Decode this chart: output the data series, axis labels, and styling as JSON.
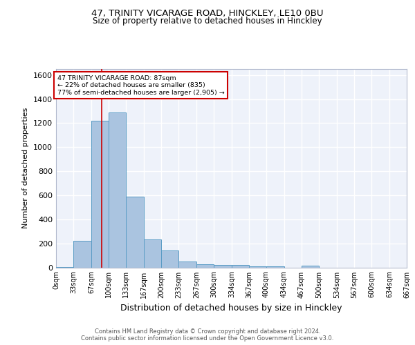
{
  "title_line1": "47, TRINITY VICARAGE ROAD, HINCKLEY, LE10 0BU",
  "title_line2": "Size of property relative to detached houses in Hinckley",
  "xlabel": "Distribution of detached houses by size in Hinckley",
  "ylabel": "Number of detached properties",
  "footer_line1": "Contains HM Land Registry data © Crown copyright and database right 2024.",
  "footer_line2": "Contains public sector information licensed under the Open Government Licence v3.0.",
  "bin_edges": [
    0,
    33,
    67,
    100,
    133,
    167,
    200,
    233,
    267,
    300,
    334,
    367,
    400,
    434,
    467,
    500,
    534,
    567,
    600,
    634,
    667
  ],
  "bin_labels": [
    "0sqm",
    "33sqm",
    "67sqm",
    "100sqm",
    "133sqm",
    "167sqm",
    "200sqm",
    "233sqm",
    "267sqm",
    "300sqm",
    "334sqm",
    "367sqm",
    "400sqm",
    "434sqm",
    "467sqm",
    "500sqm",
    "534sqm",
    "567sqm",
    "600sqm",
    "634sqm",
    "667sqm"
  ],
  "counts": [
    5,
    220,
    1220,
    1290,
    590,
    235,
    140,
    50,
    28,
    22,
    22,
    8,
    8,
    0,
    15,
    0,
    0,
    0,
    0,
    0
  ],
  "bar_color": "#aac4e0",
  "bar_edge_color": "#5a9cc5",
  "ylim": [
    0,
    1650
  ],
  "yticks": [
    0,
    200,
    400,
    600,
    800,
    1000,
    1200,
    1400,
    1600
  ],
  "property_line_x": 87,
  "property_line_color": "#cc0000",
  "annotation_text_line1": "47 TRINITY VICARAGE ROAD: 87sqm",
  "annotation_text_line2": "← 22% of detached houses are smaller (835)",
  "annotation_text_line3": "77% of semi-detached houses are larger (2,905) →",
  "annotation_box_color": "#ffffff",
  "annotation_box_edge": "#cc0000",
  "bg_color": "#eef2fa",
  "grid_color": "#ffffff",
  "title_fontsize": 9.5,
  "subtitle_fontsize": 8.5,
  "ylabel_fontsize": 8,
  "xlabel_fontsize": 9
}
